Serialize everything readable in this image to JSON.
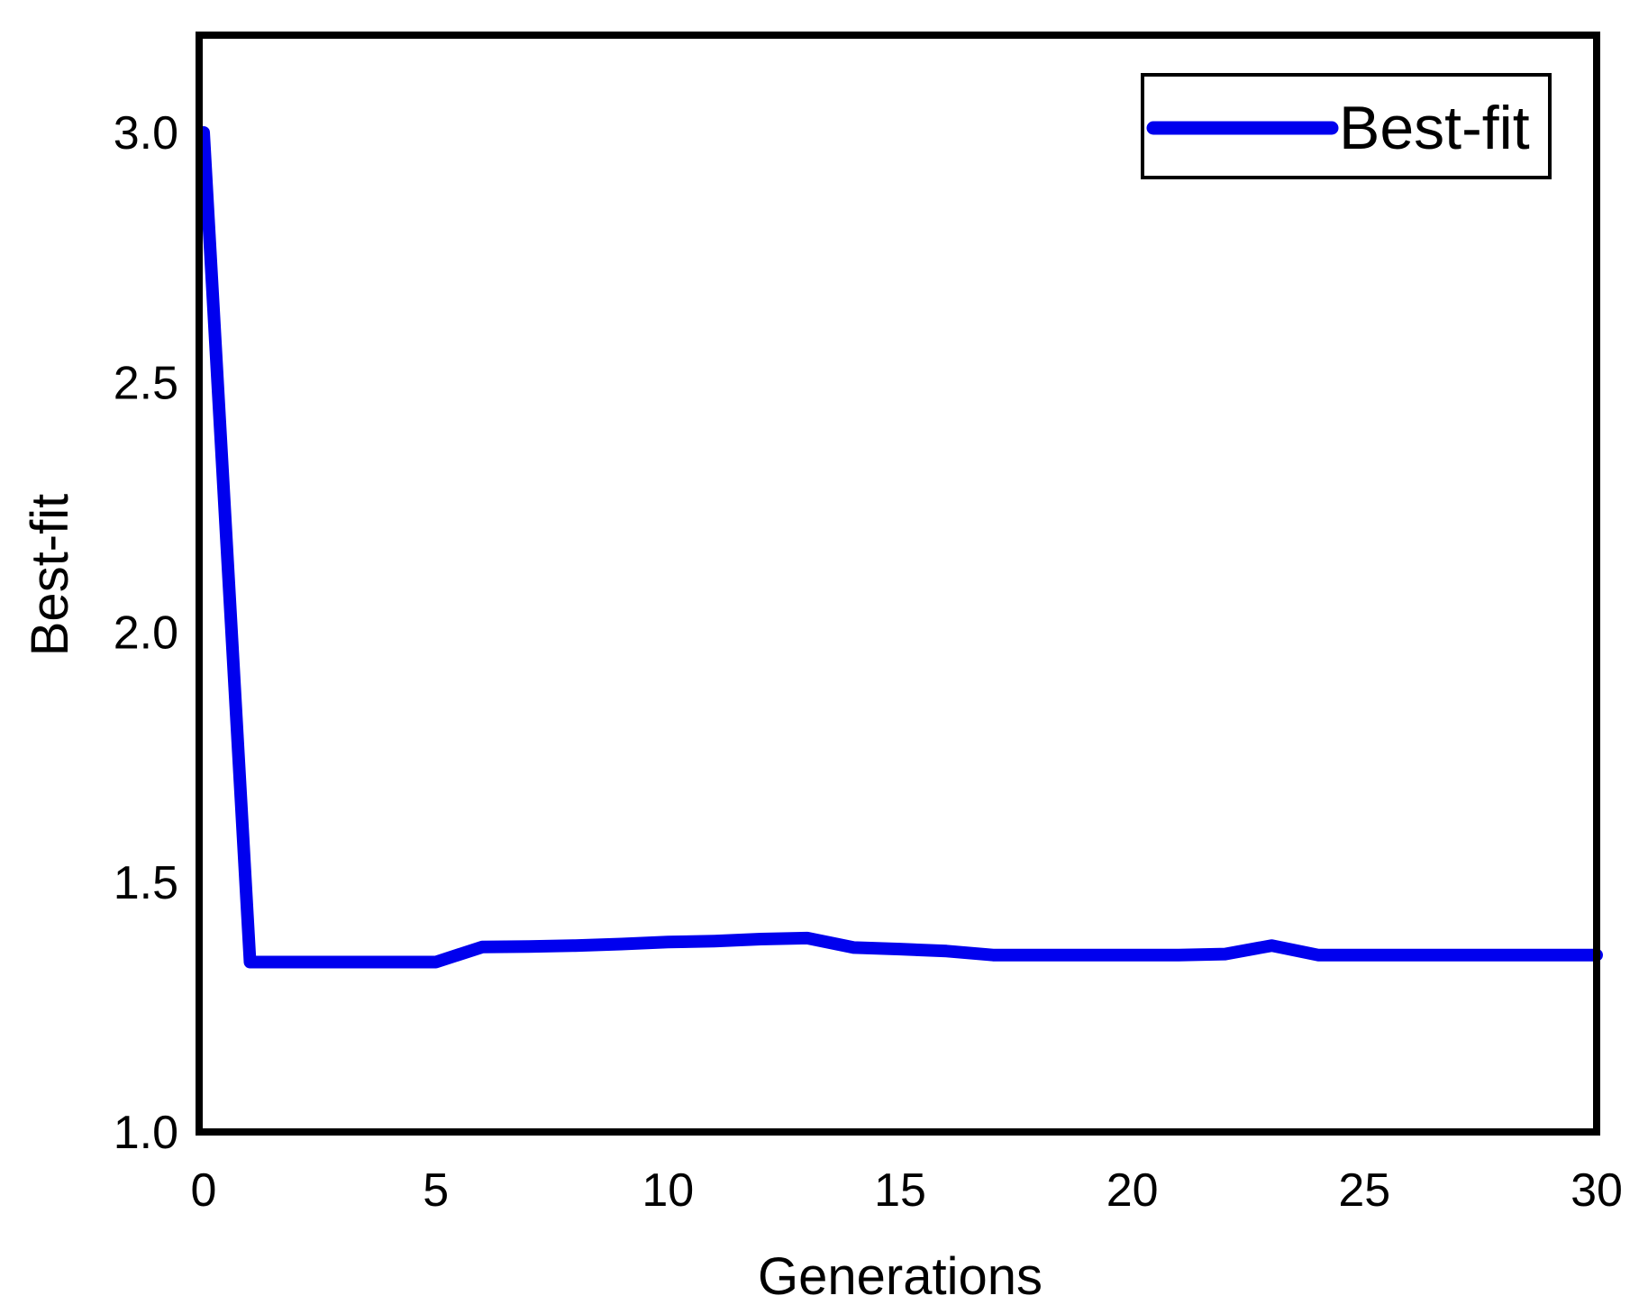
{
  "figure": {
    "background_color": "#ffffff",
    "frame_color": "#000000"
  },
  "chart_data": {
    "type": "line",
    "title": "",
    "xlabel": "Generations",
    "ylabel": "Best-fit",
    "xlim": [
      0,
      30
    ],
    "ylim": [
      1.0,
      3.2
    ],
    "grid": false,
    "x_tick_values": [
      0,
      5,
      10,
      15,
      20,
      25,
      30
    ],
    "x_tick_labels": [
      "0",
      "5",
      "10",
      "15",
      "20",
      "25",
      "30"
    ],
    "y_tick_values": [
      3.0,
      2.5,
      2.0,
      1.5,
      1.0
    ],
    "y_tick_labels": [
      "3.0",
      "2.5",
      "2.0",
      "1.5",
      "1.0"
    ],
    "legend": {
      "position": "upper right",
      "entries": [
        {
          "label": "Best-fit",
          "color": "#0000EE"
        }
      ]
    },
    "series": [
      {
        "name": "Best-fit",
        "color": "#0000EE",
        "x": [
          0,
          1,
          2,
          3,
          4,
          5,
          6,
          7,
          8,
          9,
          10,
          11,
          12,
          13,
          14,
          15,
          16,
          17,
          18,
          19,
          20,
          21,
          22,
          23,
          24,
          25,
          26,
          27,
          28,
          29,
          30
        ],
        "values": [
          3.0,
          1.34,
          1.34,
          1.34,
          1.34,
          1.34,
          1.37,
          1.371,
          1.373,
          1.376,
          1.38,
          1.382,
          1.386,
          1.388,
          1.369,
          1.366,
          1.362,
          1.354,
          1.354,
          1.354,
          1.354,
          1.354,
          1.356,
          1.373,
          1.354,
          1.354,
          1.354,
          1.354,
          1.354,
          1.354,
          1.354
        ]
      }
    ]
  }
}
